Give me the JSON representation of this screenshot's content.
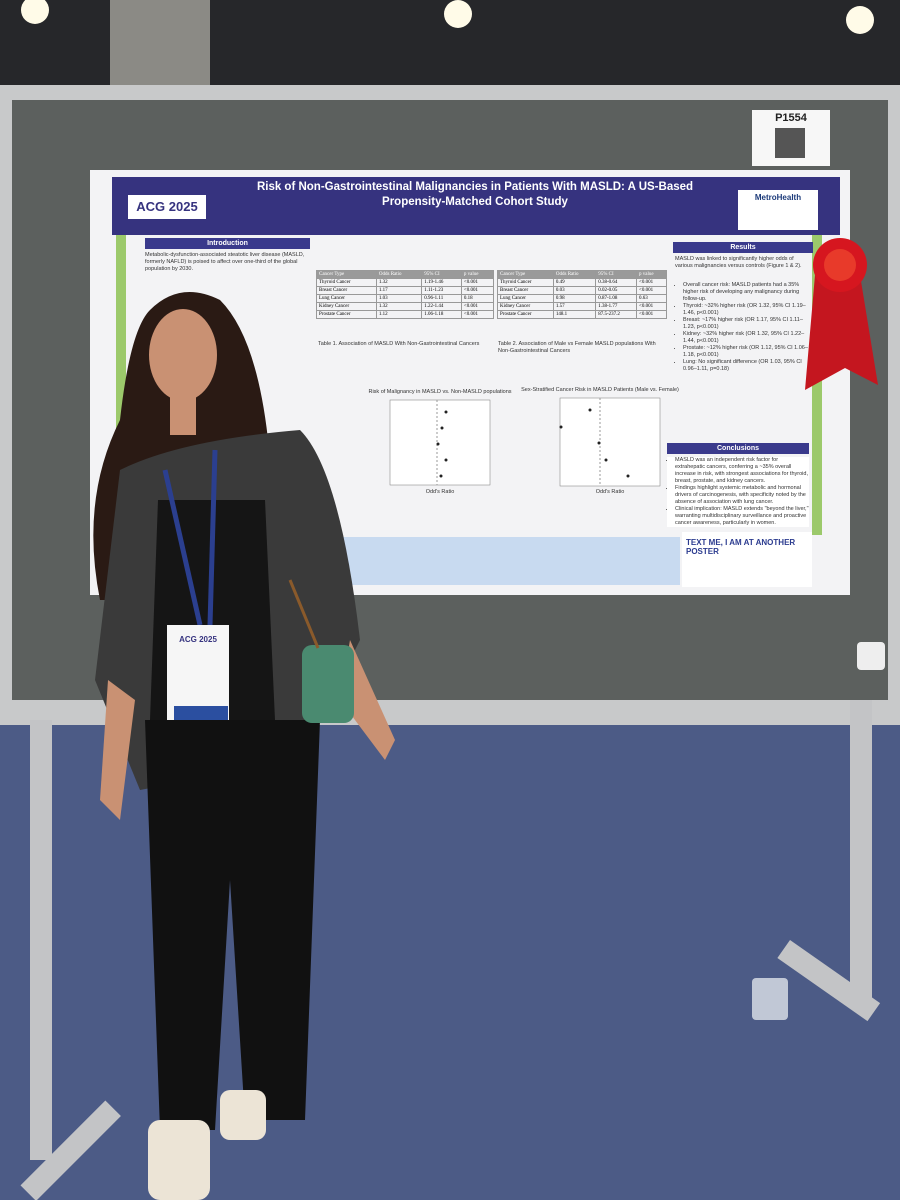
{
  "board_number": "P1554",
  "poster": {
    "logo": "ACG 2025",
    "institution_logo": "MetroHealth",
    "title": "Risk of Non-Gastrointestinal Malignancies in Patients With MASLD: A US-Based Propensity-Matched Cohort Study",
    "introduction": {
      "heading": "Introduction",
      "text": "Metabolic-dysfunction-associated steatotic liver disease (MASLD, formerly NAFLD) is poised to affect over one-third of the global population by 2030."
    },
    "table1": {
      "columns": [
        "Cancer Type",
        "Odds Ratio",
        "95% CI",
        "p value"
      ],
      "rows": [
        [
          "Thyroid Cancer",
          "1.32",
          "1.19-1.46",
          "<0.001"
        ],
        [
          "Breast Cancer",
          "1.17",
          "1.11-1.23",
          "<0.001"
        ],
        [
          "Lung Cancer",
          "1.03",
          "0.96-1.11",
          "0.18"
        ],
        [
          "Kidney Cancer",
          "1.32",
          "1.22-1.44",
          "<0.001"
        ],
        [
          "Prostate Cancer",
          "1.12",
          "1.06-1.18",
          "<0.001"
        ]
      ]
    },
    "table1_caption": "Table 1. Association of MASLD With Non-Gastrointestinal Cancers",
    "table2": {
      "columns": [
        "Cancer Type",
        "Odds Ratio",
        "95% CI",
        "p value"
      ],
      "rows": [
        [
          "Thyroid Cancer",
          "0.49",
          "0.38-0.64",
          "<0.001"
        ],
        [
          "Breast Cancer",
          "0.03",
          "0.02-0.05",
          "<0.001"
        ],
        [
          "Lung Cancer",
          "0.98",
          "0.87-1.08",
          "0.63"
        ],
        [
          "Kidney Cancer",
          "1.57",
          "1.38-1.77",
          "<0.001"
        ],
        [
          "Prostate Cancer",
          "148.1",
          "87.5-237.2",
          "<0.001"
        ]
      ]
    },
    "table2_caption": "Table 2. Association of Male vs Female MASLD populations With Non-Gastrointestinal Cancers",
    "figure1_title": "Risk of Malignancy in MASLD vs. Non-MASLD populations",
    "figure2_title": "Sex-Stratified Cancer Risk in MASLD Patients (Male vs. Female)",
    "figure_axis": "Odd's Ratio",
    "results": {
      "heading": "Results",
      "text": "MASLD was linked to significantly higher odds of various malignancies versus controls (Figure 1 & 2).",
      "items": [
        "Overall cancer risk: MASLD patients had a 35% higher risk of developing any malignancy during follow-up.",
        "Thyroid: ~32% higher risk (OR 1.32, 95% CI 1.19–1.46, p<0.001)",
        "Breast: ~17% higher risk (OR 1.17, 95% CI 1.11–1.23, p<0.001)",
        "Kidney: ~32% higher risk (OR 1.32, 95% CI 1.22–1.44, p<0.001)",
        "Prostate: ~12% higher risk (OR 1.12, 95% CI 1.06–1.18, p<0.001)",
        "Lung: No significant difference (OR 1.03, 95% CI 0.96–1.11, p=0.18)"
      ]
    },
    "conclusions": {
      "heading": "Conclusions",
      "items": [
        "MASLD was an independent risk factor for extrahepatic cancers, conferring a ~35% overall increase in risk, with strongest associations for thyroid, breast, prostate, and kidney cancers.",
        "Findings highlight systemic metabolic and hormonal drivers of carcinogenesis, with specificity noted by the absence of association with lung cancer.",
        "Clinical implication: MASLD extends \"beyond the liver,\" warranting multidisciplinary surveillance and proactive cancer awareness, particularly in women."
      ]
    },
    "text_me": "TEXT ME, I AM AT ANOTHER POSTER"
  },
  "badge": {
    "logo": "ACG 2025"
  }
}
